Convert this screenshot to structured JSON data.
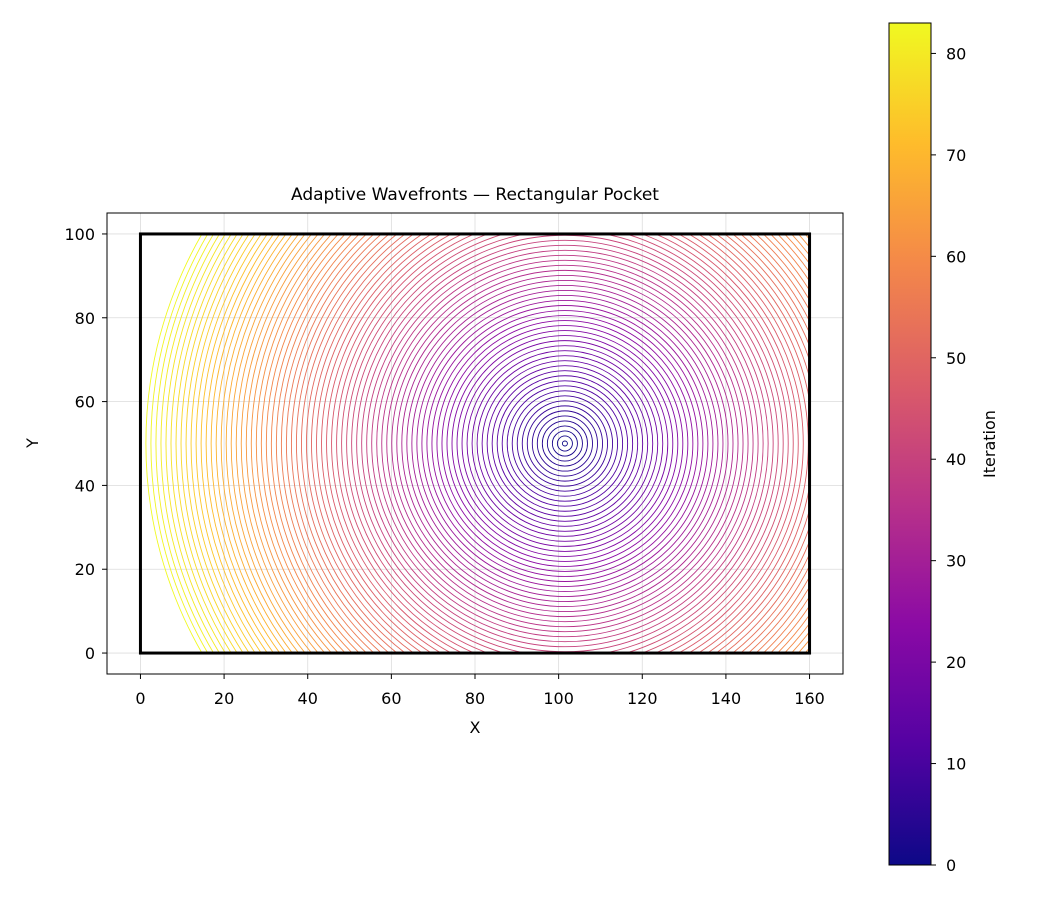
{
  "chart_data": {
    "type": "contour",
    "title": "Adaptive Wavefronts — Rectangular Pocket",
    "xlabel": "X",
    "ylabel": "Y",
    "xlim": [
      -8,
      168
    ],
    "ylim": [
      -5,
      105
    ],
    "xticks": [
      0,
      20,
      40,
      60,
      80,
      100,
      120,
      140,
      160
    ],
    "yticks": [
      0,
      20,
      40,
      60,
      80,
      100
    ],
    "grid": true,
    "pocket": {
      "x": [
        0,
        160
      ],
      "y": [
        0,
        100
      ]
    },
    "wavefront_center": {
      "x": 101.5,
      "y": 50
    },
    "wavefront_step": 1.2,
    "wavefront_count": 84,
    "colorbar": {
      "label": "Iteration",
      "colormap": "plasma",
      "range": [
        0,
        83
      ],
      "ticks": [
        0,
        10,
        20,
        30,
        40,
        50,
        60,
        70,
        80
      ]
    }
  }
}
